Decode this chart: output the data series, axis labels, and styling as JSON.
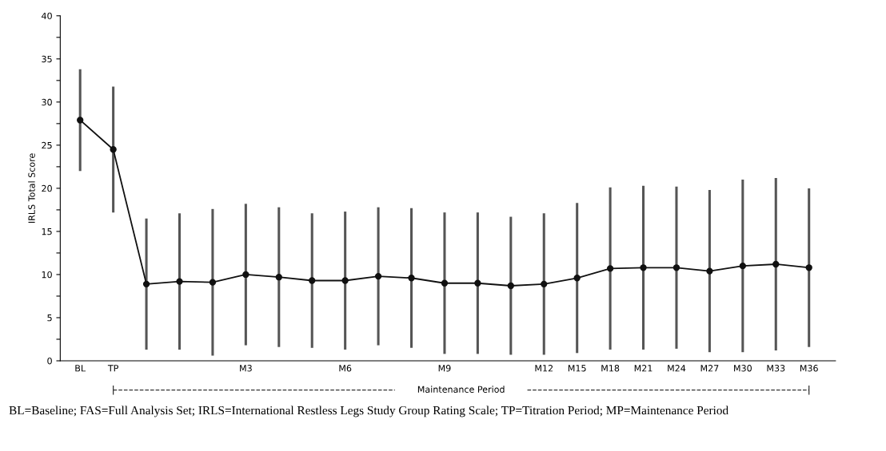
{
  "chart_data": {
    "type": "line",
    "ylabel": "IRLS Total Score",
    "categories": [
      "BL",
      "TP",
      null,
      null,
      null,
      "M3",
      null,
      null,
      "M6",
      null,
      null,
      "M9",
      null,
      null,
      "M12",
      "M15",
      "M18",
      "M21",
      "M24",
      "M27",
      "M30",
      "M33",
      "M36"
    ],
    "series": [
      {
        "color": "#111111",
        "values": [
          27.9,
          24.5,
          8.9,
          9.2,
          9.1,
          10.0,
          9.7,
          9.3,
          9.3,
          9.8,
          9.6,
          9.0,
          9.0,
          8.7,
          8.9,
          9.6,
          10.7,
          10.8,
          10.8,
          10.4,
          11.0,
          11.2,
          10.8
        ],
        "errors": [
          5.9,
          7.3,
          7.6,
          7.9,
          8.5,
          8.2,
          8.1,
          7.8,
          8.0,
          8.0,
          8.1,
          8.2,
          8.2,
          8.0,
          8.2,
          8.7,
          9.4,
          9.5,
          9.4,
          9.4,
          10.0,
          10.0,
          9.2
        ]
      }
    ],
    "ylim": [
      0,
      40
    ],
    "yticks": [
      0,
      {
        "value": 2.5,
        "label": null
      },
      5,
      {
        "value": 7.5,
        "label": null
      },
      10,
      {
        "value": 12.5,
        "label": null
      },
      15,
      {
        "value": 17.5,
        "label": null
      },
      20,
      {
        "value": 22.5,
        "label": null
      },
      25,
      {
        "value": 27.5,
        "label": null
      },
      30,
      {
        "value": 32.5,
        "label": null
      },
      35,
      {
        "value": 37.5,
        "label": null
      },
      40
    ],
    "marker": "circle",
    "line_style": "solid",
    "grid": false,
    "legend": false,
    "annotations": [
      "Maintenance Period",
      "BL=Baseline; FAS=Full Analysis Set; IRLS=International Restless Legs Study Group Rating Scale; TP=Titration Period; MP=Maintenance Period"
    ]
  }
}
